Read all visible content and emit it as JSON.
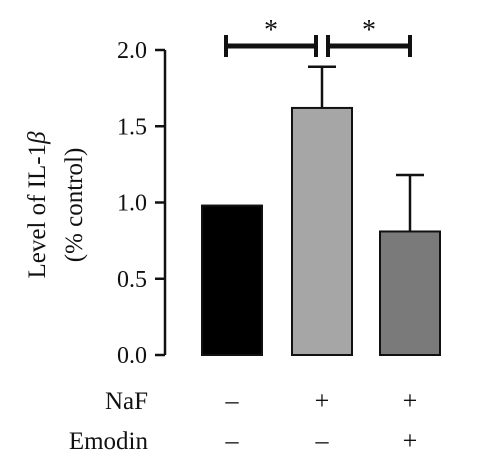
{
  "chart_data": {
    "type": "bar",
    "ylabel_line1": "Level of IL-1",
    "ylabel_beta": "β",
    "ylabel_line2": "(% control)",
    "ylim": [
      0,
      2.0
    ],
    "yticks": [
      0.0,
      0.5,
      1.0,
      1.5,
      2.0
    ],
    "ytick_labels": [
      "0.0",
      "0.5",
      "1.0",
      "1.5",
      "2.0"
    ],
    "grid": false,
    "legend": "none",
    "categories": [
      "",
      "",
      ""
    ],
    "values": [
      0.98,
      1.62,
      0.81
    ],
    "errors": [
      0.0,
      0.27,
      0.37
    ],
    "bar_colors": [
      "#000000",
      "#a6a6a6",
      "#7a7a7a"
    ],
    "conditions": [
      {
        "label": "NaF",
        "values": [
          "–",
          "+",
          "+"
        ]
      },
      {
        "label": "Emodin",
        "values": [
          "–",
          "–",
          "+"
        ]
      }
    ],
    "significance": [
      {
        "from": 0,
        "to": 1,
        "label": "*"
      },
      {
        "from": 1,
        "to": 2,
        "label": "*"
      }
    ]
  }
}
